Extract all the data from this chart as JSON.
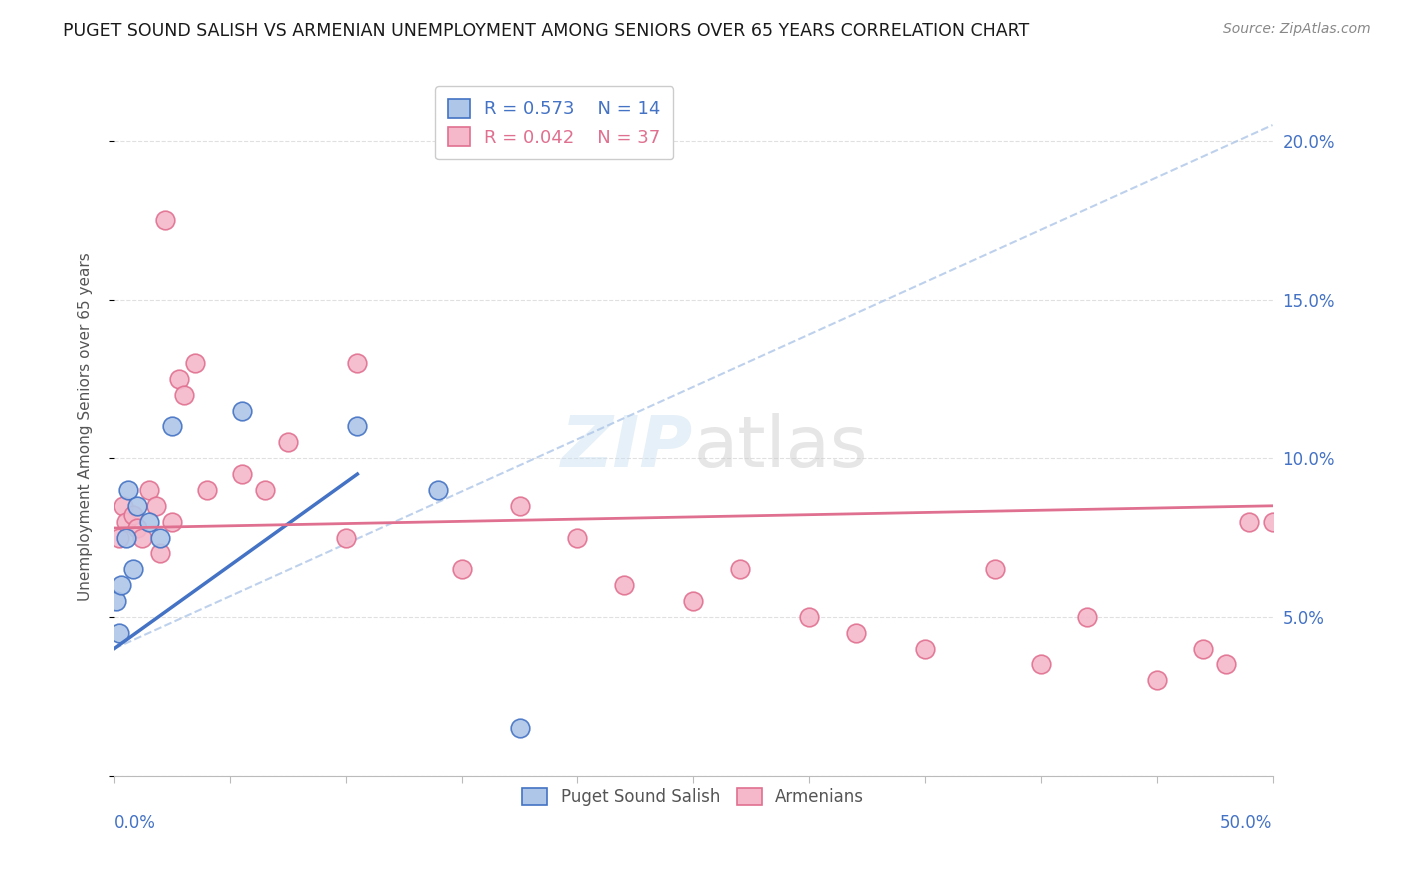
{
  "title": "PUGET SOUND SALISH VS ARMENIAN UNEMPLOYMENT AMONG SENIORS OVER 65 YEARS CORRELATION CHART",
  "source": "Source: ZipAtlas.com",
  "ylabel": "Unemployment Among Seniors over 65 years",
  "legend_label1": "Puget Sound Salish",
  "legend_label2": "Armenians",
  "legend_r1": "R = 0.573",
  "legend_n1": "N = 14",
  "legend_r2": "R = 0.042",
  "legend_n2": "N = 37",
  "color_salish": "#aec6e8",
  "color_armenian": "#f5b8cb",
  "color_salish_line": "#4472c4",
  "color_armenian_line": "#e07090",
  "color_dashed_line": "#aec6e8",
  "background_color": "#ffffff",
  "grid_color": "#e0e0e0",
  "xlim": [
    0.0,
    50.0
  ],
  "ylim": [
    0.0,
    22.0
  ],
  "puget_x": [
    0.1,
    0.2,
    0.3,
    0.5,
    0.6,
    0.8,
    1.0,
    1.5,
    2.0,
    2.5,
    5.5,
    10.5,
    14.0,
    17.5
  ],
  "puget_y": [
    5.5,
    4.5,
    6.0,
    7.5,
    9.0,
    6.5,
    8.5,
    8.0,
    7.5,
    11.0,
    11.5,
    11.0,
    9.0,
    1.5
  ],
  "armenian_x": [
    0.2,
    0.4,
    0.5,
    0.8,
    1.0,
    1.2,
    1.5,
    1.8,
    2.0,
    2.2,
    2.5,
    2.8,
    3.0,
    3.5,
    4.0,
    5.5,
    6.5,
    7.5,
    10.0,
    10.5,
    15.0,
    17.5,
    20.0,
    22.0,
    25.0,
    27.0,
    30.0,
    32.0,
    35.0,
    38.0,
    40.0,
    42.0,
    45.0,
    47.0,
    48.0,
    49.0,
    50.0
  ],
  "armenian_y": [
    7.5,
    8.5,
    8.0,
    8.2,
    7.8,
    7.5,
    9.0,
    8.5,
    7.0,
    17.5,
    8.0,
    12.5,
    12.0,
    13.0,
    9.0,
    9.5,
    9.0,
    10.5,
    7.5,
    13.0,
    6.5,
    8.5,
    7.5,
    6.0,
    5.5,
    6.5,
    5.0,
    4.5,
    4.0,
    6.5,
    3.5,
    5.0,
    3.0,
    4.0,
    3.5,
    8.0,
    8.0
  ],
  "salish_line_x0": 0.0,
  "salish_line_y0": 4.0,
  "salish_line_x1": 10.5,
  "salish_line_y1": 9.5,
  "armenian_line_x0": 0.0,
  "armenian_line_y0": 7.8,
  "armenian_line_x1": 50.0,
  "armenian_line_y1": 8.5
}
